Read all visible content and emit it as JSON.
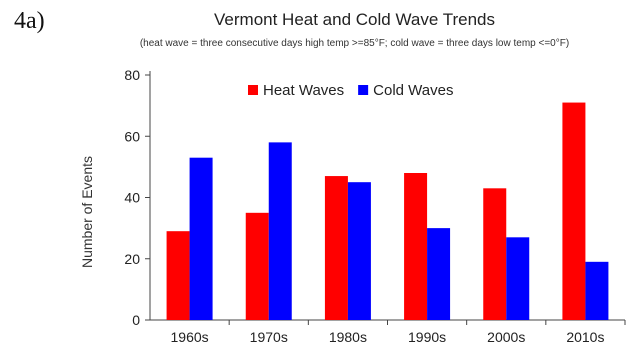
{
  "panel_label": "4a)",
  "chart_data": {
    "type": "bar",
    "title": "Vermont Heat and Cold Wave Trends",
    "subtitle": "(heat wave = three consecutive days high temp >=85°F; cold wave = three days low temp <=0°F)",
    "xlabel": "",
    "ylabel": "Number of Events",
    "ylim": [
      0,
      80
    ],
    "yticks": [
      0,
      20,
      40,
      60,
      80
    ],
    "categories": [
      "1960s",
      "1970s",
      "1980s",
      "1990s",
      "2000s",
      "2010s"
    ],
    "series": [
      {
        "name": "Heat Waves",
        "color": "#ff0000",
        "values": [
          29,
          35,
          47,
          48,
          43,
          71
        ]
      },
      {
        "name": "Cold Waves",
        "color": "#0000ff",
        "values": [
          53,
          58,
          45,
          30,
          27,
          19
        ]
      }
    ],
    "legend_position": "top-center",
    "grid": false
  }
}
